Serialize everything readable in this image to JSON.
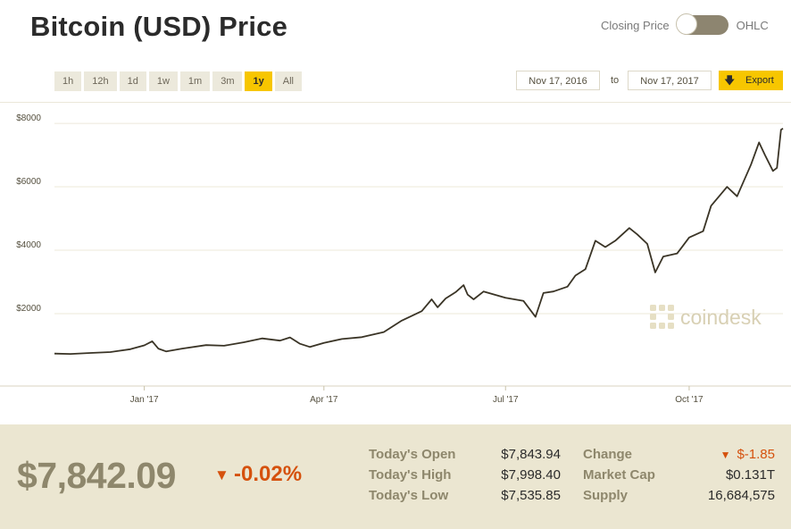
{
  "title": "Bitcoin (USD) Price",
  "toggle": {
    "left_label": "Closing Price",
    "right_label": "OHLC",
    "state": "Closing Price"
  },
  "ranges": [
    "1h",
    "12h",
    "1d",
    "1w",
    "1m",
    "3m",
    "1y",
    "All"
  ],
  "active_range": "1y",
  "date_from": "Nov 17, 2016",
  "date_to_label": "to",
  "date_to": "Nov 17, 2017",
  "export_label": "Export",
  "watermark": "coindesk",
  "colors": {
    "accent": "#f7c600",
    "negative": "#d5510d",
    "line": "#3a3426",
    "footer_bg": "#ebe6d1",
    "label": "#8e876c"
  },
  "chart_data": {
    "type": "line",
    "title": "",
    "xlabel": "",
    "ylabel": "",
    "x_range": [
      "2016-11-17",
      "2017-11-17"
    ],
    "ylim": [
      0,
      8650
    ],
    "y_ticks": [
      2000,
      4000,
      6000,
      8000
    ],
    "y_tick_labels": [
      "$2000",
      "$4000",
      "$6000",
      "$8000"
    ],
    "x_ticks": [
      "2017-01-01",
      "2017-04-01",
      "2017-07-01",
      "2017-10-01"
    ],
    "x_tick_labels": [
      "Jan '17",
      "Apr '17",
      "Jul '17",
      "Oct '17"
    ],
    "grid": "horizontal",
    "series": [
      {
        "name": "",
        "x": [
          "2016-11-17",
          "2016-11-25",
          "2016-12-05",
          "2016-12-15",
          "2016-12-25",
          "2017-01-01",
          "2017-01-05",
          "2017-01-08",
          "2017-01-12",
          "2017-01-20",
          "2017-02-01",
          "2017-02-10",
          "2017-02-20",
          "2017-03-01",
          "2017-03-10",
          "2017-03-15",
          "2017-03-20",
          "2017-03-25",
          "2017-04-01",
          "2017-04-10",
          "2017-04-20",
          "2017-05-01",
          "2017-05-10",
          "2017-05-20",
          "2017-05-25",
          "2017-05-28",
          "2017-06-01",
          "2017-06-06",
          "2017-06-10",
          "2017-06-12",
          "2017-06-15",
          "2017-06-20",
          "2017-07-01",
          "2017-07-10",
          "2017-07-16",
          "2017-07-20",
          "2017-07-25",
          "2017-08-01",
          "2017-08-05",
          "2017-08-10",
          "2017-08-15",
          "2017-08-20",
          "2017-08-25",
          "2017-09-01",
          "2017-09-05",
          "2017-09-10",
          "2017-09-14",
          "2017-09-18",
          "2017-09-25",
          "2017-10-01",
          "2017-10-08",
          "2017-10-12",
          "2017-10-20",
          "2017-10-25",
          "2017-11-01",
          "2017-11-05",
          "2017-11-08",
          "2017-11-12",
          "2017-11-14",
          "2017-11-16",
          "2017-11-17"
        ],
        "y": [
          740,
          730,
          760,
          790,
          880,
          1000,
          1130,
          900,
          810,
          900,
          1010,
          990,
          1100,
          1220,
          1150,
          1250,
          1050,
          950,
          1080,
          1200,
          1260,
          1420,
          1780,
          2080,
          2450,
          2200,
          2480,
          2680,
          2900,
          2600,
          2450,
          2700,
          2500,
          2400,
          1900,
          2650,
          2700,
          2850,
          3200,
          3400,
          4300,
          4100,
          4300,
          4700,
          4500,
          4200,
          3300,
          3800,
          3900,
          4400,
          4600,
          5400,
          6000,
          5700,
          6700,
          7400,
          7000,
          6500,
          6600,
          7800,
          7842
        ]
      }
    ]
  },
  "footer": {
    "price": "$7,842.09",
    "change_pct": "-0.02%",
    "stats_left": [
      {
        "label": "Today's Open",
        "value": "$7,843.94"
      },
      {
        "label": "Today's High",
        "value": "$7,998.40"
      },
      {
        "label": "Today's Low",
        "value": "$7,535.85"
      }
    ],
    "stats_right": [
      {
        "label": "Change",
        "value": "$-1.85"
      },
      {
        "label": "Market Cap",
        "value": "$0.131T"
      },
      {
        "label": "Supply",
        "value": "16,684,575"
      }
    ]
  }
}
